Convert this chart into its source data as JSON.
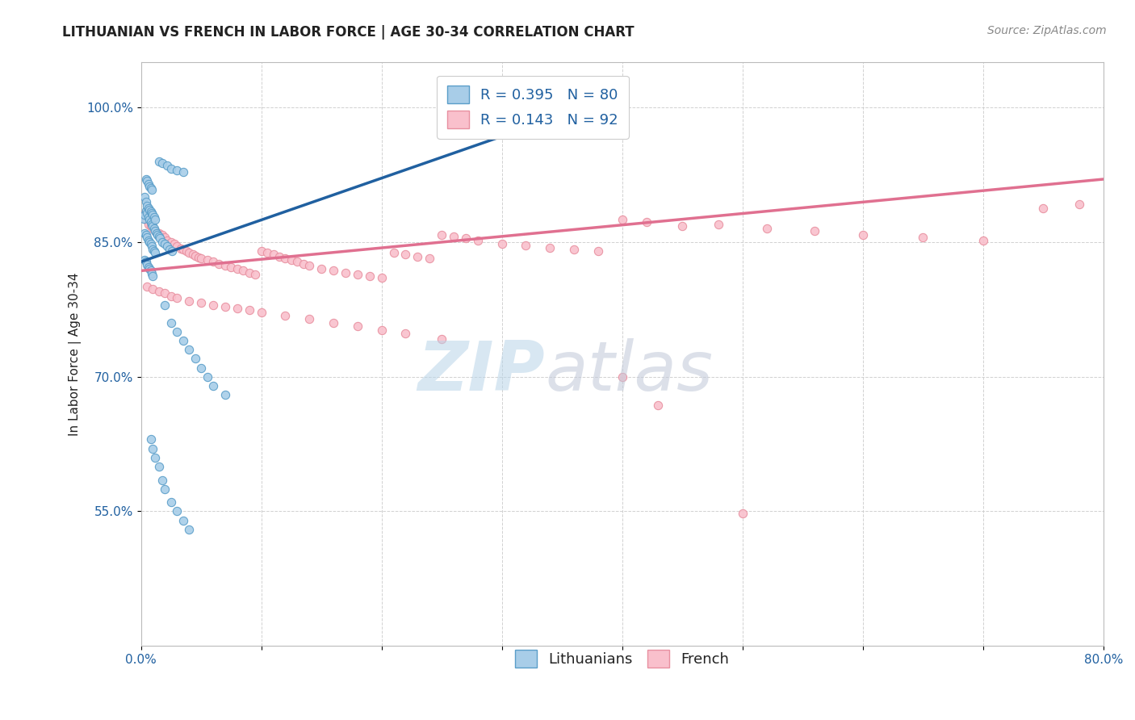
{
  "title": "LITHUANIAN VS FRENCH IN LABOR FORCE | AGE 30-34 CORRELATION CHART",
  "source_text": "Source: ZipAtlas.com",
  "ylabel_text": "In Labor Force | Age 30-34",
  "x_min": 0.0,
  "x_max": 0.8,
  "y_min": 0.4,
  "y_max": 1.05,
  "x_ticks": [
    0.0,
    0.1,
    0.2,
    0.3,
    0.4,
    0.5,
    0.6,
    0.7,
    0.8
  ],
  "x_tick_labels": [
    "0.0%",
    "",
    "",
    "",
    "",
    "",
    "",
    "",
    "80.0%"
  ],
  "y_ticks": [
    0.55,
    0.7,
    0.85,
    1.0
  ],
  "y_tick_labels": [
    "55.0%",
    "70.0%",
    "85.0%",
    "100.0%"
  ],
  "watermark_zip": "ZIP",
  "watermark_atlas": "atlas",
  "legend_r1_val": "0.395",
  "legend_n1_val": "80",
  "legend_r2_val": "0.143",
  "legend_n2_val": "92",
  "blue_face_color": "#a8cde8",
  "blue_edge_color": "#5a9ec9",
  "pink_face_color": "#f9c0cc",
  "pink_edge_color": "#e890a0",
  "blue_line_color": "#2060a0",
  "pink_line_color": "#e07090",
  "blue_scatter_x": [
    0.002,
    0.003,
    0.004,
    0.005,
    0.006,
    0.007,
    0.008,
    0.009,
    0.01,
    0.011,
    0.012,
    0.013,
    0.014,
    0.015,
    0.016,
    0.018,
    0.02,
    0.022,
    0.024,
    0.026,
    0.003,
    0.004,
    0.005,
    0.006,
    0.007,
    0.008,
    0.009,
    0.01,
    0.011,
    0.012,
    0.003,
    0.004,
    0.005,
    0.006,
    0.007,
    0.008,
    0.009,
    0.01,
    0.011,
    0.012,
    0.003,
    0.004,
    0.005,
    0.006,
    0.007,
    0.008,
    0.009,
    0.01,
    0.004,
    0.005,
    0.006,
    0.007,
    0.008,
    0.009,
    0.015,
    0.018,
    0.022,
    0.025,
    0.03,
    0.035,
    0.02,
    0.025,
    0.03,
    0.035,
    0.04,
    0.045,
    0.05,
    0.055,
    0.06,
    0.07,
    0.008,
    0.01,
    0.012,
    0.015,
    0.018,
    0.02,
    0.025,
    0.03,
    0.035,
    0.04
  ],
  "blue_scatter_y": [
    0.876,
    0.88,
    0.885,
    0.882,
    0.878,
    0.875,
    0.872,
    0.87,
    0.868,
    0.865,
    0.862,
    0.86,
    0.858,
    0.856,
    0.854,
    0.85,
    0.848,
    0.845,
    0.842,
    0.84,
    0.9,
    0.895,
    0.89,
    0.888,
    0.886,
    0.884,
    0.882,
    0.88,
    0.878,
    0.875,
    0.86,
    0.858,
    0.855,
    0.852,
    0.85,
    0.848,
    0.845,
    0.842,
    0.84,
    0.838,
    0.83,
    0.828,
    0.825,
    0.822,
    0.82,
    0.818,
    0.815,
    0.812,
    0.92,
    0.918,
    0.915,
    0.912,
    0.91,
    0.908,
    0.94,
    0.938,
    0.935,
    0.932,
    0.93,
    0.928,
    0.78,
    0.76,
    0.75,
    0.74,
    0.73,
    0.72,
    0.71,
    0.7,
    0.69,
    0.68,
    0.63,
    0.62,
    0.61,
    0.6,
    0.585,
    0.575,
    0.56,
    0.55,
    0.54,
    0.53
  ],
  "pink_scatter_x": [
    0.002,
    0.004,
    0.006,
    0.008,
    0.01,
    0.012,
    0.015,
    0.018,
    0.02,
    0.022,
    0.025,
    0.028,
    0.03,
    0.033,
    0.035,
    0.038,
    0.04,
    0.043,
    0.045,
    0.048,
    0.05,
    0.055,
    0.06,
    0.065,
    0.07,
    0.075,
    0.08,
    0.085,
    0.09,
    0.095,
    0.1,
    0.105,
    0.11,
    0.115,
    0.12,
    0.125,
    0.13,
    0.135,
    0.14,
    0.15,
    0.16,
    0.17,
    0.18,
    0.19,
    0.2,
    0.21,
    0.22,
    0.23,
    0.24,
    0.25,
    0.26,
    0.27,
    0.28,
    0.3,
    0.32,
    0.34,
    0.36,
    0.38,
    0.4,
    0.42,
    0.45,
    0.48,
    0.52,
    0.56,
    0.6,
    0.65,
    0.7,
    0.75,
    0.78,
    0.005,
    0.01,
    0.015,
    0.02,
    0.025,
    0.03,
    0.04,
    0.05,
    0.06,
    0.07,
    0.08,
    0.09,
    0.1,
    0.12,
    0.14,
    0.16,
    0.18,
    0.2,
    0.22,
    0.25,
    0.4,
    0.5,
    0.43
  ],
  "pink_scatter_y": [
    0.88,
    0.875,
    0.87,
    0.868,
    0.865,
    0.862,
    0.86,
    0.858,
    0.855,
    0.852,
    0.85,
    0.848,
    0.845,
    0.843,
    0.842,
    0.84,
    0.838,
    0.836,
    0.835,
    0.833,
    0.832,
    0.83,
    0.828,
    0.826,
    0.824,
    0.822,
    0.82,
    0.818,
    0.816,
    0.814,
    0.84,
    0.838,
    0.836,
    0.834,
    0.832,
    0.83,
    0.828,
    0.826,
    0.824,
    0.82,
    0.818,
    0.816,
    0.814,
    0.812,
    0.81,
    0.838,
    0.836,
    0.834,
    0.832,
    0.858,
    0.856,
    0.854,
    0.852,
    0.848,
    0.846,
    0.844,
    0.842,
    0.84,
    0.875,
    0.872,
    0.868,
    0.87,
    0.865,
    0.862,
    0.858,
    0.855,
    0.852,
    0.888,
    0.892,
    0.8,
    0.798,
    0.795,
    0.793,
    0.79,
    0.788,
    0.784,
    0.782,
    0.78,
    0.778,
    0.776,
    0.774,
    0.772,
    0.768,
    0.764,
    0.76,
    0.756,
    0.752,
    0.748,
    0.742,
    0.7,
    0.548,
    0.668
  ],
  "blue_trend_x": [
    0.0,
    0.38
  ],
  "blue_trend_y": [
    0.828,
    1.005
  ],
  "pink_trend_x": [
    0.0,
    0.8
  ],
  "pink_trend_y": [
    0.818,
    0.92
  ],
  "title_fontsize": 12,
  "axis_label_fontsize": 11,
  "tick_fontsize": 11,
  "legend_fontsize": 13,
  "source_fontsize": 10,
  "marker_size": 55,
  "background_color": "#ffffff",
  "grid_color": "#cccccc",
  "text_color_blue": "#2060a0",
  "text_color_dark": "#222222",
  "zip_color": "#b8d4e8",
  "atlas_color": "#c0c8d8"
}
